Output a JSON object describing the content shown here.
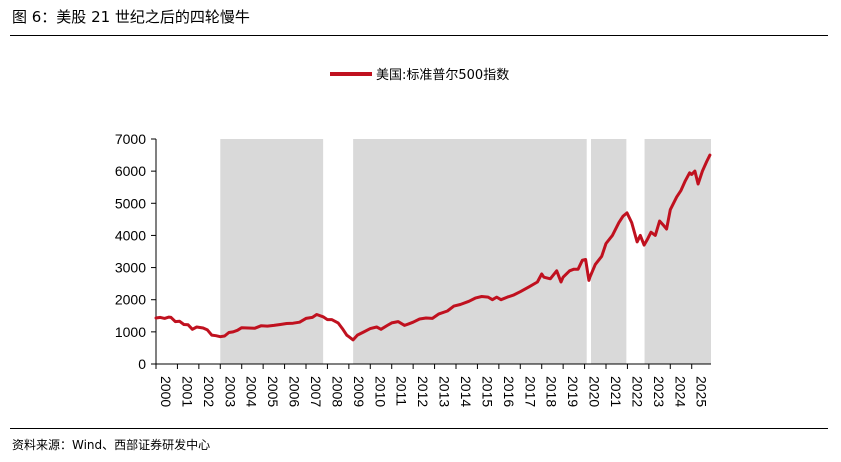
{
  "figure": {
    "title": "图 6：美股 21 世纪之后的四轮慢牛",
    "source": "资料来源：Wind、西部证券研发中心"
  },
  "colors": {
    "line": "#c0111f",
    "shade": "#d9d9d9",
    "axis": "#000000"
  },
  "chart_data": {
    "type": "line",
    "title": "",
    "xlabel": "",
    "ylabel": "",
    "legend": {
      "label": "美国:标准普尔500指数",
      "position": "top-center"
    },
    "ylim": [
      0,
      7000
    ],
    "yticks": [
      0,
      1000,
      2000,
      3000,
      4000,
      5000,
      6000,
      7000
    ],
    "xlim": [
      2000,
      2025.9
    ],
    "xticks": [
      "2000",
      "2001",
      "2002",
      "2003",
      "2004",
      "2005",
      "2006",
      "2007",
      "2008",
      "2009",
      "2010",
      "2011",
      "2012",
      "2013",
      "2014",
      "2015",
      "2016",
      "2017",
      "2018",
      "2019",
      "2020",
      "2021",
      "2022",
      "2023",
      "2024",
      "2025"
    ],
    "shaded_periods": [
      [
        2003.0,
        2007.8
      ],
      [
        2009.2,
        2020.1
      ],
      [
        2020.3,
        2021.95
      ],
      [
        2022.8,
        2025.9
      ]
    ],
    "series": [
      {
        "name": "美国:标准普尔500指数",
        "x": [
          2000.0,
          2000.2,
          2000.4,
          2000.6,
          2000.7,
          2000.9,
          2001.1,
          2001.3,
          2001.5,
          2001.7,
          2001.9,
          2002.2,
          2002.4,
          2002.6,
          2002.8,
          2003.0,
          2003.2,
          2003.4,
          2003.6,
          2003.8,
          2004.0,
          2004.3,
          2004.6,
          2004.9,
          2005.2,
          2005.5,
          2005.8,
          2006.1,
          2006.4,
          2006.7,
          2007.0,
          2007.3,
          2007.5,
          2007.8,
          2008.0,
          2008.2,
          2008.5,
          2008.7,
          2008.9,
          2009.0,
          2009.2,
          2009.4,
          2009.7,
          2010.0,
          2010.3,
          2010.5,
          2010.8,
          2011.0,
          2011.3,
          2011.6,
          2011.8,
          2012.0,
          2012.3,
          2012.6,
          2012.9,
          2013.2,
          2013.6,
          2013.9,
          2014.2,
          2014.6,
          2014.9,
          2015.2,
          2015.5,
          2015.7,
          2015.9,
          2016.1,
          2016.4,
          2016.7,
          2017.0,
          2017.4,
          2017.8,
          2018.0,
          2018.1,
          2018.4,
          2018.7,
          2018.9,
          2019.0,
          2019.3,
          2019.5,
          2019.7,
          2019.9,
          2020.05,
          2020.2,
          2020.25,
          2020.5,
          2020.8,
          2021.0,
          2021.3,
          2021.6,
          2021.8,
          2021.98,
          2022.2,
          2022.45,
          2022.6,
          2022.78,
          2022.95,
          2023.1,
          2023.3,
          2023.5,
          2023.7,
          2023.83,
          2024.0,
          2024.3,
          2024.5,
          2024.7,
          2024.9,
          2025.0,
          2025.15,
          2025.3,
          2025.5,
          2025.7,
          2025.85
        ],
        "values": [
          1430,
          1450,
          1420,
          1460,
          1450,
          1320,
          1330,
          1230,
          1220,
          1080,
          1150,
          1120,
          1060,
          900,
          880,
          850,
          870,
          980,
          1000,
          1050,
          1130,
          1120,
          1110,
          1190,
          1180,
          1200,
          1230,
          1260,
          1270,
          1300,
          1420,
          1450,
          1540,
          1470,
          1380,
          1380,
          1280,
          1100,
          900,
          850,
          750,
          900,
          1000,
          1100,
          1150,
          1080,
          1200,
          1280,
          1320,
          1200,
          1250,
          1300,
          1400,
          1430,
          1420,
          1560,
          1650,
          1800,
          1850,
          1950,
          2050,
          2100,
          2080,
          2000,
          2080,
          2000,
          2080,
          2150,
          2250,
          2400,
          2550,
          2800,
          2700,
          2650,
          2900,
          2550,
          2700,
          2900,
          2950,
          2950,
          3230,
          3250,
          2600,
          2700,
          3100,
          3350,
          3750,
          4000,
          4400,
          4600,
          4700,
          4400,
          3800,
          4000,
          3700,
          3900,
          4100,
          4000,
          4450,
          4300,
          4200,
          4800,
          5200,
          5400,
          5700,
          5950,
          5900,
          6000,
          5600,
          6000,
          6300,
          6500
        ]
      }
    ]
  }
}
